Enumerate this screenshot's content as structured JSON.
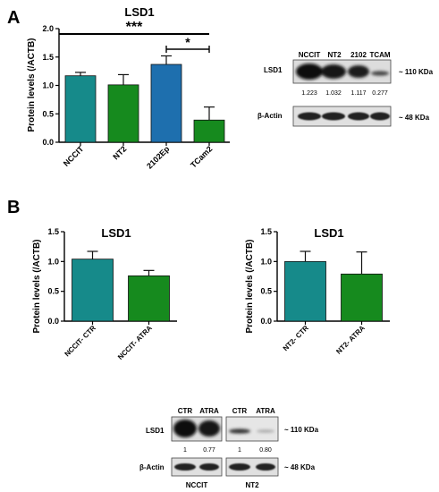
{
  "panels": {
    "a": "A",
    "b": "B"
  },
  "chart_data": [
    {
      "type": "bar",
      "title": "LSD1",
      "ylabel": "Protein levels  (/ACTB)",
      "categories": [
        "NCCIT",
        "NT2",
        "2102Ep",
        "TCam2"
      ],
      "values": [
        1.17,
        1.01,
        1.37,
        0.39
      ],
      "errors": [
        0.06,
        0.18,
        0.15,
        0.23
      ],
      "colors": [
        "#168a8a",
        "#168a1e",
        "#1e6fae",
        "#168a1e"
      ],
      "ylim": [
        0,
        2.0
      ],
      "yticks": [
        "0.0",
        "0.5",
        "1.0",
        "1.5",
        "2.0"
      ],
      "significance": [
        {
          "label": "***",
          "from": "NCCIT",
          "to": "TCam2"
        },
        {
          "label": "*",
          "from": "2102Ep",
          "to": "TCam2"
        }
      ]
    },
    {
      "type": "bar",
      "title": "LSD1",
      "ylabel": "Protein levels  (/ACTB)",
      "categories": [
        "NCCIT- CTR",
        "NCCIT- ATRA"
      ],
      "values": [
        1.04,
        0.76
      ],
      "errors": [
        0.13,
        0.09
      ],
      "colors": [
        "#168a8a",
        "#168a1e"
      ],
      "ylim": [
        0,
        1.5
      ],
      "yticks": [
        "0.0",
        "0.5",
        "1.0",
        "1.5"
      ]
    },
    {
      "type": "bar",
      "title": "LSD1",
      "ylabel": "Protein levels  (/ACTB)",
      "categories": [
        "NT2- CTR",
        "NT2- ATRA"
      ],
      "values": [
        1.0,
        0.79
      ],
      "errors": [
        0.17,
        0.37
      ],
      "colors": [
        "#168a8a",
        "#168a1e"
      ],
      "ylim": [
        0,
        1.5
      ],
      "yticks": [
        "0.0",
        "0.5",
        "1.0",
        "1.5"
      ]
    }
  ],
  "blot_a": {
    "lanes": [
      "NCCIT",
      "NT2",
      "2102",
      "TCAM"
    ],
    "row1_label": "LSD1",
    "row2_label": "β-Actin",
    "row1_kda": "~ 110 KDa",
    "row2_kda": "~ 48 KDa",
    "quant": [
      "1.223",
      "1.032",
      "1.117",
      "0.277"
    ]
  },
  "blot_b": {
    "lanes_left": [
      "CTR",
      "ATRA"
    ],
    "lanes_right": [
      "CTR",
      "ATRA"
    ],
    "row1_label": "LSD1",
    "row2_label": "β-Actin",
    "row1_kda": "~ 110 KDa",
    "row2_kda": "~ 48 KDa",
    "quant_left": [
      "1",
      "0.77"
    ],
    "quant_right": [
      "1",
      "0.80"
    ],
    "group_left": "NCCIT",
    "group_right": "NT2"
  }
}
